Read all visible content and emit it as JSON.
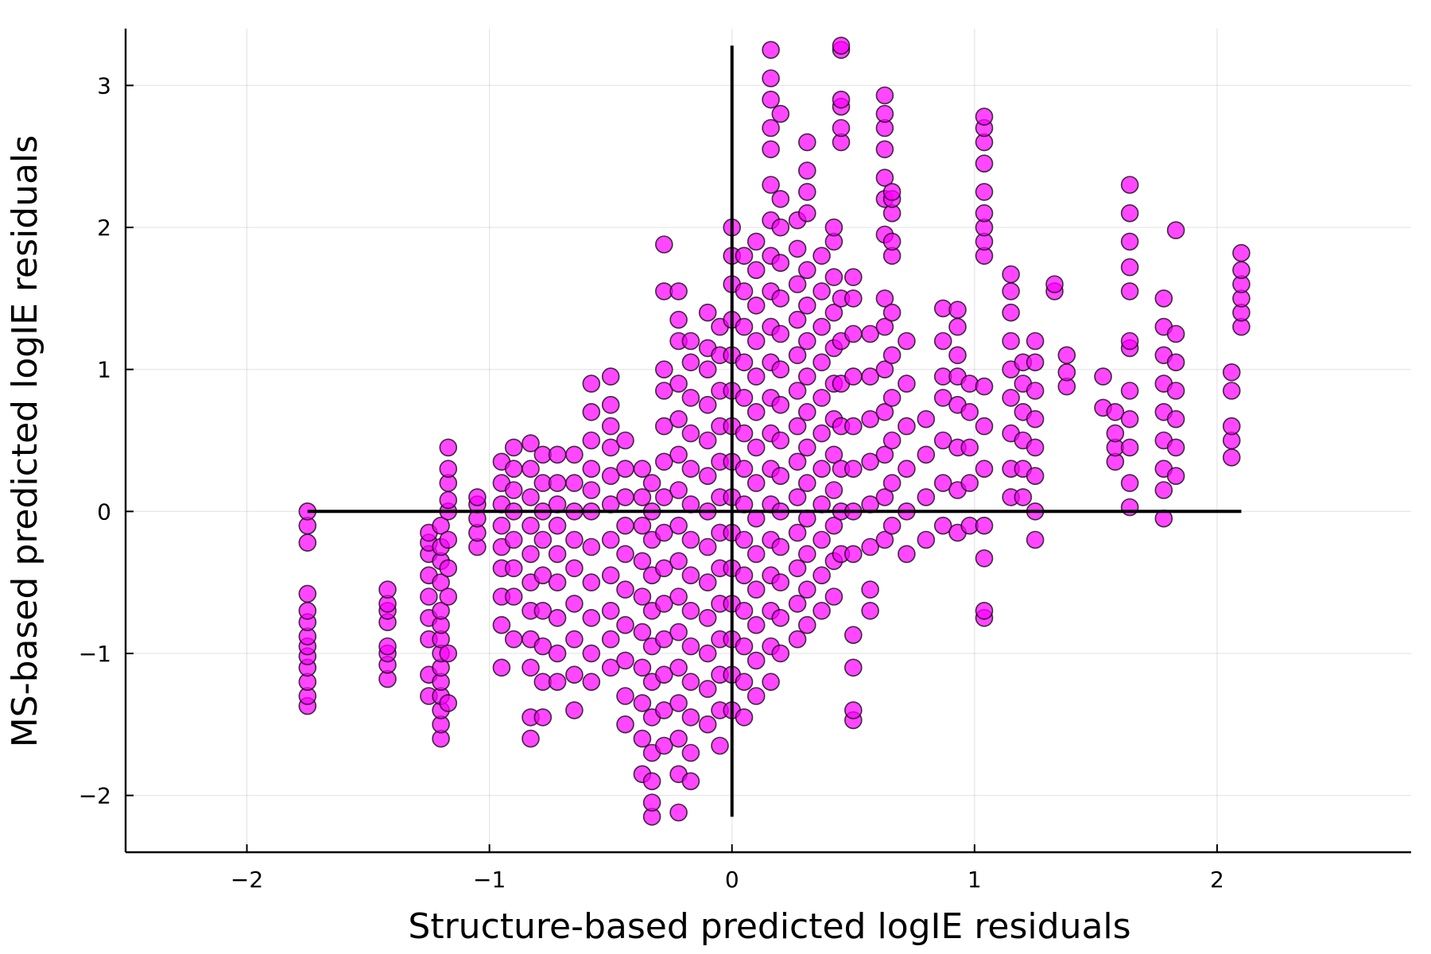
{
  "chart_data": {
    "type": "scatter",
    "title": "",
    "xlabel": "Structure-based predicted logIE residuals",
    "ylabel": "MS-based predicted logIE residuals",
    "xlim": [
      -2.5,
      2.8
    ],
    "ylim": [
      -2.4,
      3.4
    ],
    "x_ticks": [
      {
        "value": -2,
        "label": "−2"
      },
      {
        "value": -1,
        "label": "−1"
      },
      {
        "value": 0,
        "label": "0"
      },
      {
        "value": 1,
        "label": "1"
      },
      {
        "value": 2,
        "label": "2"
      }
    ],
    "y_ticks": [
      {
        "value": -2,
        "label": "−2"
      },
      {
        "value": -1,
        "label": "−1"
      },
      {
        "value": 0,
        "label": "0"
      },
      {
        "value": 1,
        "label": "1"
      },
      {
        "value": 2,
        "label": "2"
      },
      {
        "value": 3,
        "label": "3"
      }
    ],
    "grid": true,
    "legend": "none",
    "reference_lines": [
      {
        "orientation": "horizontal",
        "y": 0,
        "x_from": -1.75,
        "x_to": 2.1
      },
      {
        "orientation": "vertical",
        "x": 0,
        "y_from": -2.15,
        "y_to": 3.28
      }
    ],
    "series": [
      {
        "marker_color": "#FF00FF",
        "marker_edge_color": "#000000",
        "point_columns": [
          {
            "x": -1.75,
            "y": [
              -1.37,
              -1.3,
              -1.2,
              -1.1,
              -1.02,
              -0.95,
              -0.88,
              -0.78,
              -0.7,
              -0.58,
              -0.22,
              -0.1,
              0.0
            ]
          },
          {
            "x": -1.42,
            "y": [
              -1.18,
              -1.08,
              -1.0,
              -0.95,
              -0.78,
              -0.7,
              -0.65,
              -0.55
            ]
          },
          {
            "x": -1.25,
            "y": [
              -1.3,
              -1.15,
              -0.9,
              -0.75,
              -0.6,
              -0.45,
              -0.3,
              -0.22,
              -0.15
            ]
          },
          {
            "x": -1.2,
            "y": [
              -1.6,
              -1.5,
              -1.4,
              -1.3,
              -1.2,
              -1.1,
              -1.0,
              -0.9,
              -0.8,
              -0.7,
              -0.5,
              -0.35,
              -0.25,
              -0.1
            ]
          },
          {
            "x": -1.17,
            "y": [
              -1.35,
              -1.0,
              -0.6,
              -0.4,
              -0.2,
              0.0,
              0.08,
              0.2,
              0.3,
              0.45
            ]
          },
          {
            "x": -1.05,
            "y": [
              -0.25,
              -0.15,
              -0.05,
              0.05,
              0.1
            ]
          },
          {
            "x": -0.95,
            "y": [
              -1.1,
              -0.8,
              -0.6,
              -0.4,
              -0.25,
              -0.1,
              0.05,
              0.2,
              0.35
            ]
          },
          {
            "x": -0.9,
            "y": [
              -0.9,
              -0.6,
              -0.4,
              -0.2,
              0.0,
              0.15,
              0.3,
              0.45
            ]
          },
          {
            "x": -0.83,
            "y": [
              -1.6,
              -1.45,
              -1.1,
              -0.9,
              -0.7,
              -0.5,
              -0.3,
              -0.1,
              0.1,
              0.3,
              0.48
            ]
          },
          {
            "x": -0.78,
            "y": [
              -1.45,
              -1.2,
              -0.95,
              -0.7,
              -0.45,
              -0.2,
              0.0,
              0.2,
              0.4
            ]
          },
          {
            "x": -0.72,
            "y": [
              -1.2,
              -1.0,
              -0.75,
              -0.5,
              -0.3,
              -0.1,
              0.05,
              0.2,
              0.4
            ]
          },
          {
            "x": -0.65,
            "y": [
              -1.4,
              -1.15,
              -0.9,
              -0.65,
              -0.4,
              -0.2,
              0.0,
              0.2,
              0.4
            ]
          },
          {
            "x": -0.58,
            "y": [
              -1.2,
              -1.0,
              -0.75,
              -0.5,
              -0.25,
              0.0,
              0.15,
              0.3,
              0.5,
              0.7,
              0.9
            ]
          },
          {
            "x": -0.5,
            "y": [
              -1.1,
              -0.9,
              -0.7,
              -0.45,
              -0.2,
              0.05,
              0.25,
              0.45,
              0.6,
              0.75,
              0.95
            ]
          },
          {
            "x": -0.44,
            "y": [
              -1.5,
              -1.3,
              -1.05,
              -0.8,
              -0.55,
              -0.3,
              -0.1,
              0.1,
              0.3,
              0.5
            ]
          },
          {
            "x": -0.37,
            "y": [
              -1.85,
              -1.6,
              -1.35,
              -1.1,
              -0.85,
              -0.6,
              -0.35,
              -0.1,
              0.1,
              0.3
            ]
          },
          {
            "x": -0.33,
            "y": [
              -2.15,
              -2.05,
              -1.9,
              -1.7,
              -1.45,
              -1.2,
              -0.95,
              -0.7,
              -0.45,
              -0.2,
              0.0,
              0.2
            ]
          },
          {
            "x": -0.28,
            "y": [
              -1.65,
              -1.4,
              -1.15,
              -0.9,
              -0.65,
              -0.4,
              -0.15,
              0.1,
              0.35,
              0.6,
              0.85,
              1.0,
              1.55,
              1.88
            ]
          },
          {
            "x": -0.22,
            "y": [
              -2.12,
              -1.85,
              -1.6,
              -1.35,
              -1.1,
              -0.85,
              -0.6,
              -0.35,
              -0.1,
              0.15,
              0.4,
              0.65,
              0.9,
              1.2,
              1.35,
              1.55
            ]
          },
          {
            "x": -0.17,
            "y": [
              -1.9,
              -1.7,
              -1.45,
              -1.2,
              -0.95,
              -0.7,
              -0.45,
              -0.2,
              0.05,
              0.3,
              0.55,
              0.8,
              1.05,
              1.2
            ]
          },
          {
            "x": -0.1,
            "y": [
              -1.5,
              -1.25,
              -1.0,
              -0.75,
              -0.5,
              -0.25,
              0.0,
              0.25,
              0.5,
              0.75,
              1.0,
              1.15,
              1.4
            ]
          },
          {
            "x": -0.05,
            "y": [
              -1.65,
              -1.4,
              -1.15,
              -0.9,
              -0.65,
              -0.4,
              -0.15,
              0.1,
              0.35,
              0.6,
              0.85,
              1.1,
              1.3
            ]
          },
          {
            "x": 0.0,
            "y": [
              -1.4,
              -1.15,
              -0.9,
              -0.65,
              -0.4,
              -0.15,
              0.1,
              0.35,
              0.6,
              0.85,
              1.1,
              1.35,
              1.6,
              1.8,
              2.0
            ]
          },
          {
            "x": 0.05,
            "y": [
              -1.45,
              -1.2,
              -0.95,
              -0.7,
              -0.45,
              -0.2,
              0.05,
              0.3,
              0.55,
              0.8,
              1.05,
              1.3,
              1.55,
              1.8
            ]
          },
          {
            "x": 0.1,
            "y": [
              -1.3,
              -1.05,
              -0.8,
              -0.55,
              -0.3,
              -0.05,
              0.2,
              0.45,
              0.7,
              0.95,
              1.2,
              1.45,
              1.7,
              1.9
            ]
          },
          {
            "x": 0.16,
            "y": [
              -1.2,
              -0.95,
              -0.7,
              -0.45,
              -0.2,
              0.05,
              0.3,
              0.55,
              0.8,
              1.05,
              1.3,
              1.55,
              1.8,
              2.05,
              2.3,
              2.55,
              2.7,
              2.9,
              3.05,
              3.25
            ]
          },
          {
            "x": 0.2,
            "y": [
              -1.0,
              -0.75,
              -0.5,
              -0.25,
              0.0,
              0.25,
              0.5,
              0.75,
              1.0,
              1.25,
              1.5,
              1.75,
              2.0,
              2.2,
              2.8
            ]
          },
          {
            "x": 0.27,
            "y": [
              -0.9,
              -0.65,
              -0.4,
              -0.15,
              0.1,
              0.35,
              0.6,
              0.85,
              1.1,
              1.35,
              1.6,
              1.85,
              2.05
            ]
          },
          {
            "x": 0.31,
            "y": [
              -0.8,
              -0.55,
              -0.3,
              -0.05,
              0.2,
              0.45,
              0.7,
              0.95,
              1.2,
              1.45,
              1.7,
              2.1,
              2.25,
              2.4,
              2.6
            ]
          },
          {
            "x": 0.37,
            "y": [
              -0.7,
              -0.45,
              -0.2,
              0.05,
              0.3,
              0.55,
              0.8,
              1.05,
              1.3,
              1.55,
              1.8
            ]
          },
          {
            "x": 0.42,
            "y": [
              -0.6,
              -0.35,
              -0.1,
              0.15,
              0.4,
              0.65,
              0.9,
              1.15,
              1.4,
              1.65,
              1.9,
              2.0
            ]
          },
          {
            "x": 0.45,
            "y": [
              -0.3,
              0.0,
              0.3,
              0.6,
              0.9,
              1.2,
              1.5,
              2.6,
              2.7,
              2.85,
              2.9,
              3.25,
              3.28
            ]
          },
          {
            "x": 0.5,
            "y": [
              -1.47,
              -1.4,
              -1.1,
              -0.87,
              -0.3,
              0.0,
              0.3,
              0.6,
              0.95,
              1.25,
              1.5,
              1.65
            ]
          },
          {
            "x": 0.57,
            "y": [
              -0.7,
              -0.55,
              -0.25,
              0.05,
              0.35,
              0.65,
              0.95,
              1.25
            ]
          },
          {
            "x": 0.63,
            "y": [
              -0.2,
              0.1,
              0.4,
              0.7,
              1.0,
              1.3,
              1.5,
              1.95,
              2.2,
              2.35,
              2.55,
              2.7,
              2.8,
              2.93
            ]
          },
          {
            "x": 0.66,
            "y": [
              -0.1,
              0.2,
              0.5,
              0.8,
              1.1,
              1.4,
              1.8,
              1.9,
              2.1,
              2.2,
              2.25
            ]
          },
          {
            "x": 0.72,
            "y": [
              -0.3,
              0.0,
              0.3,
              0.6,
              0.9,
              1.2
            ]
          },
          {
            "x": 0.8,
            "y": [
              -0.2,
              0.1,
              0.4,
              0.65
            ]
          },
          {
            "x": 0.87,
            "y": [
              -0.1,
              0.2,
              0.5,
              0.8,
              0.95,
              1.2,
              1.43
            ]
          },
          {
            "x": 0.93,
            "y": [
              -0.15,
              0.15,
              0.45,
              0.75,
              0.95,
              1.1,
              1.3,
              1.42
            ]
          },
          {
            "x": 0.98,
            "y": [
              -0.1,
              0.2,
              0.45,
              0.7,
              0.9
            ]
          },
          {
            "x": 1.04,
            "y": [
              -0.75,
              -0.7,
              -0.33,
              -0.1,
              0.3,
              0.6,
              0.88,
              1.8,
              1.9,
              2.0,
              2.1,
              2.25,
              2.45,
              2.6,
              2.7,
              2.78
            ]
          },
          {
            "x": 1.15,
            "y": [
              0.1,
              0.3,
              0.55,
              0.8,
              1.0,
              1.2,
              1.4,
              1.55,
              1.67
            ]
          },
          {
            "x": 1.2,
            "y": [
              0.1,
              0.3,
              0.5,
              0.7,
              0.9,
              1.05
            ]
          },
          {
            "x": 1.25,
            "y": [
              -0.2,
              0.0,
              0.25,
              0.45,
              0.65,
              0.85,
              1.05,
              1.2
            ]
          },
          {
            "x": 1.33,
            "y": [
              1.55,
              1.6
            ]
          },
          {
            "x": 1.38,
            "y": [
              0.88,
              0.98,
              1.1
            ]
          },
          {
            "x": 1.53,
            "y": [
              0.73,
              0.95
            ]
          },
          {
            "x": 1.58,
            "y": [
              0.35,
              0.45,
              0.55,
              0.7
            ]
          },
          {
            "x": 1.64,
            "y": [
              0.03,
              0.2,
              0.45,
              0.65,
              0.85,
              1.15,
              1.2,
              1.55,
              1.72,
              1.9,
              2.1,
              2.3
            ]
          },
          {
            "x": 1.78,
            "y": [
              -0.05,
              0.15,
              0.3,
              0.5,
              0.7,
              0.9,
              1.1,
              1.3,
              1.5
            ]
          },
          {
            "x": 1.83,
            "y": [
              0.25,
              0.45,
              0.65,
              0.85,
              1.05,
              1.25,
              1.98
            ]
          },
          {
            "x": 2.06,
            "y": [
              0.38,
              0.5,
              0.6,
              0.85,
              0.98
            ]
          },
          {
            "x": 2.1,
            "y": [
              1.3,
              1.4,
              1.5,
              1.6,
              1.7,
              1.82
            ]
          }
        ]
      }
    ]
  }
}
